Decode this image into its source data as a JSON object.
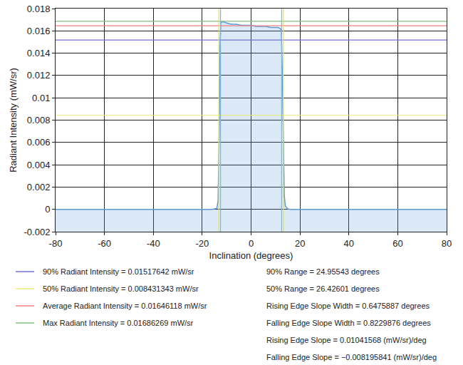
{
  "chart_data": {
    "type": "line",
    "x_label": "Inclination (degrees)",
    "y_label": "Radiant Intensity (mW/sr)",
    "xlim": [
      -80,
      80
    ],
    "xticks": [
      -80,
      -60,
      -40,
      -20,
      0,
      20,
      40,
      60,
      80
    ],
    "ylim": [
      -0.002,
      0.018
    ],
    "yticks": [
      -0.002,
      0,
      0.002,
      0.004,
      0.006,
      0.008,
      0.01,
      0.012,
      0.014,
      0.016,
      0.018
    ],
    "grid": true,
    "color": "#5b9bd5",
    "x": [
      -80,
      -60,
      -40,
      -20,
      -16,
      -15,
      -14,
      -13.5,
      -13,
      -12.7,
      -12.4,
      -12,
      -11,
      -10,
      -8,
      -6,
      -4,
      -2,
      0,
      2,
      4,
      6,
      8,
      10,
      11,
      12,
      12.4,
      12.8,
      13.2,
      13.6,
      14,
      15,
      16,
      20,
      40,
      60,
      80
    ],
    "values": [
      0,
      0,
      0,
      0,
      0,
      5e-05,
      0.0001,
      0.0008,
      0.0075,
      0.0148,
      0.0167,
      0.0168,
      0.0168,
      0.0167,
      0.0166,
      0.0166,
      0.0165,
      0.0165,
      0.0165,
      0.0164,
      0.0164,
      0.0164,
      0.0163,
      0.0163,
      0.0163,
      0.0162,
      0.016,
      0.012,
      0.0055,
      0.0012,
      0.0003,
      5e-05,
      0,
      0,
      0,
      0,
      0
    ],
    "reference_lines": [
      {
        "name": "90% Radiant Intensity = 0.01517642 mW/sr",
        "value": 0.01517642,
        "color": "#7070d8"
      },
      {
        "name": "50% Radiant Intensity = 0.008431343 mW/sr",
        "value": 0.008431343,
        "color": "#eeea7a"
      },
      {
        "name": "Average Radiant Intensity = 0.01646118 mW/sr",
        "value": 0.01646118,
        "color": "#f08080"
      },
      {
        "name": "Max Radiant Intensity = 0.01686269 mW/sr",
        "value": 0.01686269,
        "color": "#80c080"
      }
    ],
    "vertical_lines": [
      {
        "x": -13.2,
        "color": "#e8e04a"
      },
      {
        "x": -12.5,
        "color": "#5fc9d6"
      },
      {
        "x": 12.5,
        "color": "#5fc9d6"
      },
      {
        "x": 13.2,
        "color": "#e8e04a"
      }
    ],
    "annotations": [
      "90% Range = 24.95543 degrees",
      "50% Range = 26.42601 degrees",
      "Rising Edge Slope Width = 0.6475887 degrees",
      "Falling Edge Slope Width = 0.8229876 degrees",
      "Rising Edge Slope = 0.01041568 (mW/sr)/deg",
      "Falling Edge Slope = −0.008195841 (mW/sr)/deg"
    ]
  }
}
